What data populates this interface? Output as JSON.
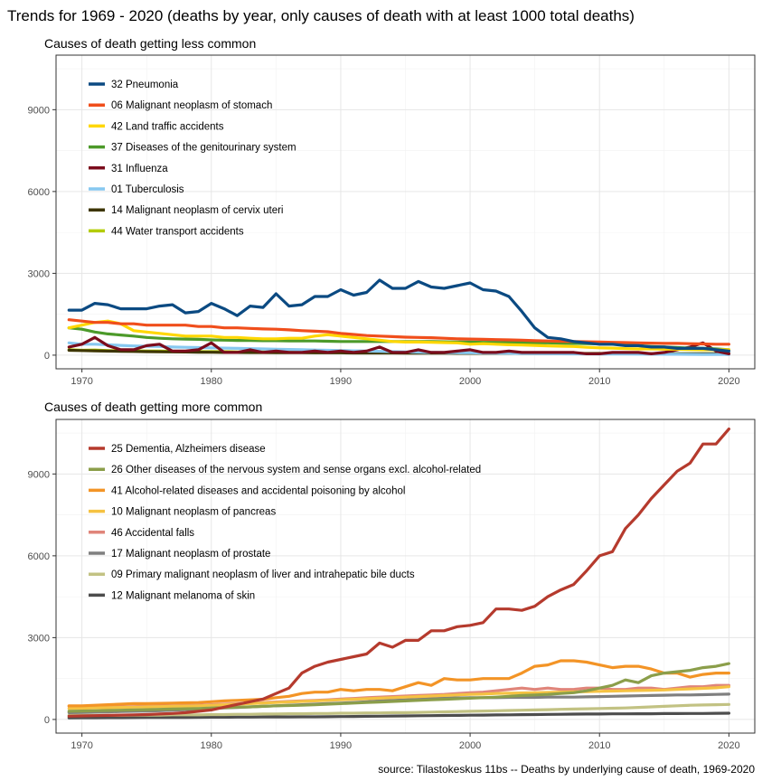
{
  "title": "Trends for 1969 - 2020 (deaths by year, only causes of death with at least 1000 total deaths)",
  "caption": "source: Tilastokeskus 11bs -- Deaths by underlying cause of death, 1969-2020",
  "chart_data": [
    {
      "type": "line",
      "title": "Causes of death getting less common",
      "xlim": [
        1968,
        2022
      ],
      "ylim": [
        -500,
        11000
      ],
      "x_ticks": [
        1970,
        1980,
        1990,
        2000,
        2010,
        2020
      ],
      "y_ticks": [
        0,
        3000,
        6000,
        9000
      ],
      "grid": true,
      "legend_position": "top-left",
      "x": [
        1969,
        1970,
        1971,
        1972,
        1973,
        1974,
        1975,
        1976,
        1977,
        1978,
        1979,
        1980,
        1981,
        1982,
        1983,
        1984,
        1985,
        1986,
        1987,
        1988,
        1989,
        1990,
        1991,
        1992,
        1993,
        1994,
        1995,
        1996,
        1997,
        1998,
        1999,
        2000,
        2001,
        2002,
        2003,
        2004,
        2005,
        2006,
        2007,
        2008,
        2009,
        2010,
        2011,
        2012,
        2013,
        2014,
        2015,
        2016,
        2017,
        2018,
        2019,
        2020
      ],
      "series": [
        {
          "name": "32 Pneumonia",
          "color": "#0b4a82",
          "values": [
            1650,
            1650,
            1900,
            1850,
            1700,
            1700,
            1700,
            1800,
            1850,
            1550,
            1600,
            1900,
            1700,
            1450,
            1800,
            1750,
            2250,
            1800,
            1850,
            2150,
            2150,
            2400,
            2200,
            2300,
            2750,
            2450,
            2450,
            2700,
            2500,
            2450,
            2550,
            2650,
            2400,
            2350,
            2150,
            1600,
            1000,
            650,
            600,
            500,
            450,
            400,
            400,
            350,
            350,
            300,
            300,
            250,
            250,
            250,
            200,
            150
          ]
        },
        {
          "name": "06 Malignant neoplasm of stomach",
          "color": "#f04e1b",
          "values": [
            1300,
            1250,
            1200,
            1200,
            1150,
            1150,
            1100,
            1100,
            1100,
            1100,
            1050,
            1050,
            1000,
            1000,
            980,
            960,
            950,
            930,
            900,
            880,
            860,
            800,
            760,
            720,
            700,
            680,
            660,
            650,
            640,
            620,
            600,
            590,
            580,
            570,
            560,
            550,
            530,
            520,
            510,
            500,
            490,
            480,
            470,
            460,
            450,
            440,
            430,
            430,
            420,
            410,
            400,
            400
          ]
        },
        {
          "name": "42 Land traffic accidents",
          "color": "#ffd700",
          "values": [
            1000,
            1100,
            1200,
            1250,
            1150,
            900,
            850,
            800,
            750,
            700,
            700,
            700,
            650,
            650,
            620,
            600,
            600,
            620,
            620,
            700,
            750,
            700,
            650,
            600,
            550,
            500,
            480,
            480,
            470,
            460,
            450,
            400,
            420,
            400,
            380,
            370,
            360,
            340,
            330,
            320,
            290,
            270,
            260,
            240,
            230,
            230,
            220,
            220,
            210,
            200,
            200,
            200
          ]
        },
        {
          "name": "37 Diseases of the genitourinary system",
          "color": "#4c9a2a",
          "values": [
            1000,
            950,
            850,
            780,
            740,
            700,
            650,
            620,
            600,
            590,
            580,
            560,
            550,
            540,
            540,
            530,
            530,
            520,
            520,
            520,
            510,
            500,
            500,
            500,
            500,
            500,
            500,
            500,
            500,
            490,
            480,
            480,
            470,
            470,
            460,
            460,
            450,
            450,
            440,
            430,
            420,
            410,
            400,
            380,
            350,
            320,
            300,
            280,
            260,
            250,
            230,
            200
          ]
        },
        {
          "name": "31 Influenza",
          "color": "#7b0c1c",
          "values": [
            300,
            400,
            650,
            350,
            200,
            200,
            350,
            400,
            150,
            150,
            200,
            450,
            100,
            100,
            200,
            100,
            150,
            100,
            100,
            150,
            100,
            150,
            100,
            150,
            300,
            100,
            100,
            200,
            100,
            100,
            150,
            200,
            100,
            100,
            150,
            100,
            100,
            100,
            100,
            100,
            50,
            50,
            100,
            100,
            100,
            50,
            100,
            200,
            300,
            450,
            150,
            50
          ]
        },
        {
          "name": "01 Tuberculosis",
          "color": "#87c8f0",
          "values": [
            450,
            400,
            400,
            380,
            360,
            340,
            330,
            320,
            300,
            290,
            280,
            270,
            260,
            250,
            240,
            230,
            220,
            210,
            200,
            190,
            180,
            170,
            160,
            150,
            140,
            130,
            120,
            110,
            100,
            95,
            90,
            85,
            80,
            75,
            70,
            65,
            60,
            55,
            50,
            48,
            46,
            44,
            42,
            40,
            38,
            36,
            34,
            32,
            30,
            28,
            26,
            25
          ]
        },
        {
          "name": "14 Malignant neoplasm of cervix uteri",
          "color": "#3d3500",
          "values": [
            180,
            170,
            160,
            150,
            140,
            135,
            130,
            125,
            120,
            115,
            110,
            105,
            100,
            100,
            95,
            95,
            90,
            90,
            90,
            85,
            85,
            85,
            80,
            80,
            80,
            80,
            75,
            75,
            75,
            75,
            70,
            70,
            70,
            70,
            70,
            65,
            65,
            65,
            65,
            60,
            60,
            60,
            60,
            60,
            55,
            55,
            55,
            55,
            55,
            50,
            50,
            50
          ]
        },
        {
          "name": "44 Water transport accidents",
          "color": "#b3cc00",
          "values": [
            200,
            180,
            190,
            170,
            160,
            160,
            150,
            150,
            140,
            140,
            130,
            130,
            130,
            120,
            120,
            120,
            110,
            110,
            110,
            110,
            100,
            100,
            100,
            100,
            90,
            90,
            90,
            90,
            85,
            85,
            80,
            80,
            80,
            75,
            75,
            75,
            70,
            70,
            70,
            65,
            65,
            65,
            60,
            60,
            60,
            55,
            55,
            55,
            50,
            50,
            50,
            50
          ]
        }
      ]
    },
    {
      "type": "line",
      "title": "Causes of death getting more common",
      "xlim": [
        1968,
        2022
      ],
      "ylim": [
        -500,
        11000
      ],
      "x_ticks": [
        1970,
        1980,
        1990,
        2000,
        2010,
        2020
      ],
      "y_ticks": [
        0,
        3000,
        6000,
        9000
      ],
      "grid": true,
      "legend_position": "top-left",
      "x": [
        1969,
        1970,
        1971,
        1972,
        1973,
        1974,
        1975,
        1976,
        1977,
        1978,
        1979,
        1980,
        1981,
        1982,
        1983,
        1984,
        1985,
        1986,
        1987,
        1988,
        1989,
        1990,
        1991,
        1992,
        1993,
        1994,
        1995,
        1996,
        1997,
        1998,
        1999,
        2000,
        2001,
        2002,
        2003,
        2004,
        2005,
        2006,
        2007,
        2008,
        2009,
        2010,
        2011,
        2012,
        2013,
        2014,
        2015,
        2016,
        2017,
        2018,
        2019,
        2020
      ],
      "series": [
        {
          "name": "25 Dementia, Alzheimers disease",
          "color": "#b53a2d",
          "values": [
            120,
            130,
            140,
            150,
            160,
            170,
            180,
            200,
            220,
            250,
            300,
            350,
            450,
            550,
            650,
            750,
            950,
            1150,
            1700,
            1950,
            2100,
            2200,
            2300,
            2400,
            2800,
            2650,
            2900,
            2900,
            3250,
            3250,
            3400,
            3450,
            3550,
            4050,
            4050,
            4000,
            4150,
            4500,
            4750,
            4950,
            5450,
            6000,
            6150,
            7000,
            7500,
            8100,
            8600,
            9100,
            9400,
            10100,
            10100,
            10650
          ]
        },
        {
          "name": "26 Other diseases of the nervous system and sense organs excl. alcohol-related",
          "color": "#8b9e4a",
          "values": [
            300,
            310,
            320,
            330,
            340,
            350,
            360,
            370,
            380,
            390,
            400,
            420,
            430,
            450,
            460,
            480,
            500,
            510,
            520,
            540,
            560,
            580,
            600,
            620,
            640,
            660,
            680,
            700,
            720,
            740,
            760,
            780,
            800,
            820,
            850,
            880,
            900,
            920,
            950,
            980,
            1050,
            1150,
            1250,
            1450,
            1350,
            1600,
            1700,
            1750,
            1800,
            1900,
            1950,
            2050
          ]
        },
        {
          "name": "41 Alcohol-related diseases and accidental poisoning by alcohol",
          "color": "#f39426",
          "values": [
            500,
            500,
            520,
            540,
            560,
            580,
            580,
            590,
            600,
            610,
            620,
            650,
            680,
            700,
            720,
            740,
            800,
            850,
            950,
            1000,
            1000,
            1100,
            1050,
            1100,
            1100,
            1050,
            1200,
            1350,
            1250,
            1500,
            1450,
            1450,
            1500,
            1500,
            1500,
            1700,
            1950,
            2000,
            2150,
            2150,
            2100,
            2000,
            1900,
            1950,
            1950,
            1850,
            1700,
            1700,
            1550,
            1650,
            1700,
            1700
          ]
        },
        {
          "name": "10 Malignant neoplasm of pancreas",
          "color": "#f5c242",
          "values": [
            400,
            410,
            420,
            430,
            440,
            450,
            460,
            470,
            480,
            490,
            500,
            520,
            540,
            560,
            580,
            600,
            620,
            640,
            660,
            680,
            700,
            720,
            740,
            760,
            780,
            800,
            820,
            840,
            860,
            880,
            900,
            920,
            930,
            950,
            960,
            970,
            980,
            990,
            1000,
            1010,
            1020,
            1030,
            1040,
            1050,
            1060,
            1070,
            1080,
            1100,
            1120,
            1140,
            1160,
            1200
          ]
        },
        {
          "name": "46 Accidental falls",
          "color": "#e0857a",
          "values": [
            480,
            470,
            460,
            450,
            460,
            470,
            480,
            490,
            500,
            510,
            520,
            540,
            560,
            580,
            600,
            620,
            640,
            660,
            680,
            700,
            720,
            750,
            770,
            800,
            820,
            840,
            860,
            880,
            900,
            920,
            950,
            980,
            1000,
            1050,
            1100,
            1150,
            1100,
            1150,
            1100,
            1100,
            1150,
            1150,
            1100,
            1100,
            1150,
            1150,
            1100,
            1150,
            1200,
            1200,
            1250,
            1250
          ]
        },
        {
          "name": "17 Malignant neoplasm of prostate",
          "color": "#7f7f7f",
          "values": [
            250,
            260,
            270,
            280,
            290,
            300,
            310,
            320,
            340,
            360,
            380,
            400,
            420,
            440,
            460,
            480,
            500,
            520,
            540,
            560,
            580,
            600,
            620,
            650,
            680,
            700,
            720,
            740,
            760,
            780,
            790,
            800,
            800,
            800,
            810,
            810,
            810,
            820,
            820,
            820,
            830,
            840,
            850,
            860,
            870,
            880,
            890,
            900,
            900,
            910,
            920,
            930
          ]
        },
        {
          "name": "09 Primary malignant neoplasm of liver and intrahepatic bile ducts",
          "color": "#c2c283",
          "values": [
            150,
            150,
            150,
            150,
            150,
            160,
            160,
            160,
            170,
            170,
            170,
            180,
            180,
            190,
            190,
            200,
            200,
            210,
            210,
            220,
            220,
            230,
            230,
            240,
            240,
            250,
            250,
            260,
            270,
            280,
            290,
            300,
            310,
            320,
            330,
            340,
            350,
            360,
            370,
            380,
            390,
            400,
            410,
            420,
            440,
            460,
            480,
            500,
            520,
            530,
            540,
            550
          ]
        },
        {
          "name": "12 Malignant melanoma of skin",
          "color": "#4d4d4d",
          "values": [
            60,
            62,
            64,
            66,
            68,
            70,
            72,
            74,
            76,
            78,
            80,
            82,
            84,
            86,
            88,
            90,
            92,
            94,
            96,
            98,
            100,
            105,
            110,
            115,
            120,
            125,
            130,
            135,
            140,
            145,
            150,
            155,
            160,
            165,
            170,
            175,
            180,
            185,
            190,
            195,
            200,
            200,
            205,
            205,
            210,
            210,
            215,
            215,
            220,
            220,
            225,
            230
          ]
        }
      ]
    }
  ]
}
